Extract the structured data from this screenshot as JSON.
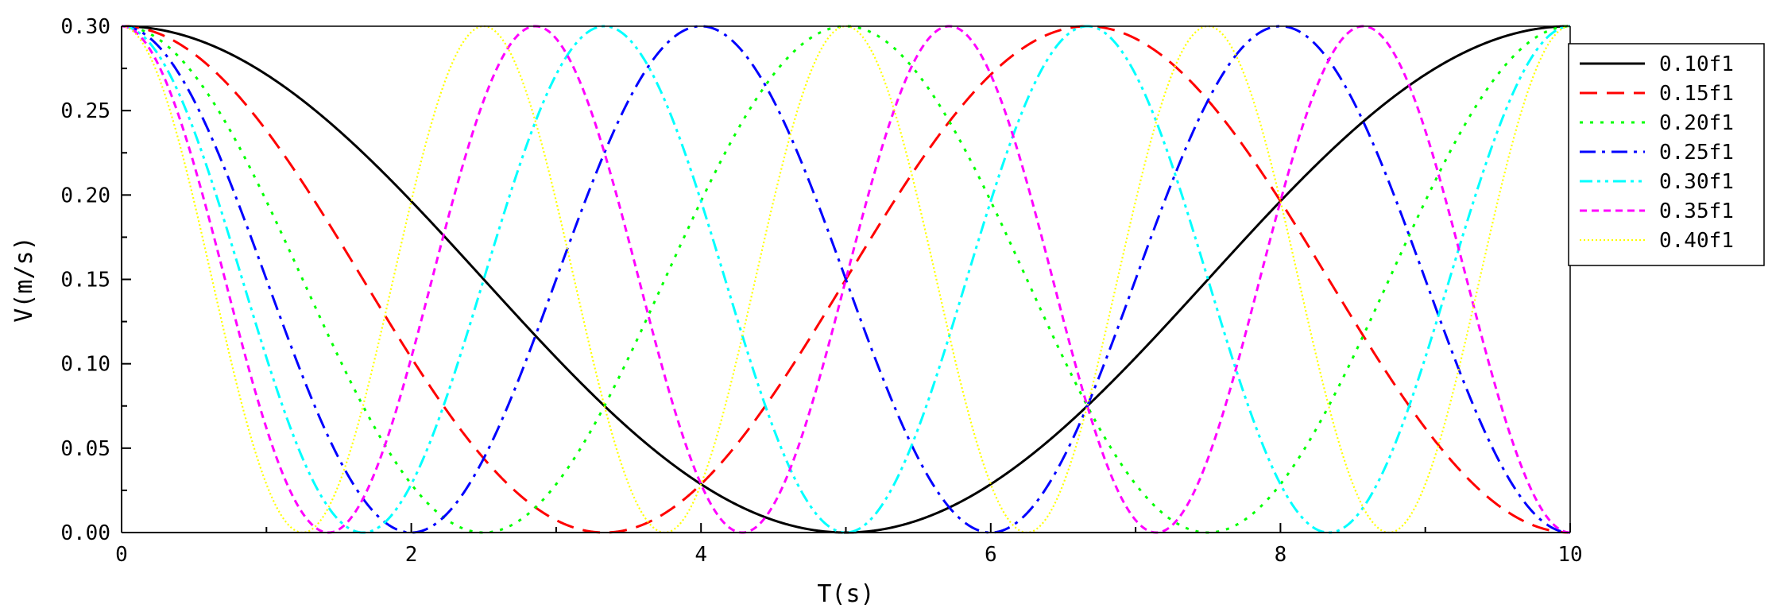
{
  "chart_data": {
    "type": "line",
    "xlabel": "T(s)",
    "ylabel": "V(m/s)",
    "xlim": [
      0,
      10
    ],
    "ylim": [
      0,
      0.3
    ],
    "xticks": [
      "0",
      "2",
      "4",
      "6",
      "8",
      "10"
    ],
    "yticks": [
      "0.00",
      "0.05",
      "0.10",
      "0.15",
      "0.20",
      "0.25",
      "0.30"
    ],
    "grid": false,
    "legend_position": "top-right",
    "series": [
      {
        "name": "0.10f1",
        "color": "#000000",
        "dash": "solid",
        "formula": "V = 0.15 + 0.15*cos(2*pi*0.10*T)",
        "x": [
          0,
          1,
          2,
          2.5,
          3,
          4,
          5,
          6,
          7,
          7.5,
          8,
          9,
          10
        ],
        "y": [
          0.3,
          0.271,
          0.196,
          0.15,
          0.104,
          0.029,
          0,
          0.029,
          0.104,
          0.15,
          0.196,
          0.271,
          0.3
        ]
      },
      {
        "name": "0.15f1",
        "color": "#ff0000",
        "dash": "dashed",
        "formula": "V = 0.15 + 0.15*cos(2*pi*0.15*T)",
        "x": [
          0,
          1,
          2,
          3.333,
          4,
          5,
          6,
          6.667,
          8,
          9,
          10
        ],
        "y": [
          0.3,
          0.238,
          0.104,
          0,
          0.029,
          0.15,
          0.271,
          0.3,
          0.196,
          0.062,
          0
        ]
      },
      {
        "name": "0.20f1",
        "color": "#00ff00",
        "dash": "dotted",
        "formula": "V = 0.15 + 0.15*cos(2*pi*0.20*T)",
        "x": [
          0,
          1,
          2,
          2.5,
          3,
          4,
          5,
          6,
          7,
          7.5,
          8,
          9,
          10
        ],
        "y": [
          0.3,
          0.196,
          0.029,
          0,
          0.029,
          0.196,
          0.3,
          0.196,
          0.029,
          0,
          0.029,
          0.196,
          0.3
        ]
      },
      {
        "name": "0.25f1",
        "color": "#0000ff",
        "dash": "dash-dot",
        "formula": "V = 0.15 + 0.15*cos(2*pi*0.25*T)",
        "x": [
          0,
          1,
          2,
          3,
          4,
          5,
          6,
          7,
          8,
          9,
          10
        ],
        "y": [
          0.3,
          0.15,
          0,
          0.15,
          0.3,
          0.15,
          0,
          0.15,
          0.3,
          0.15,
          0
        ]
      },
      {
        "name": "0.30f1",
        "color": "#00ffff",
        "dash": "dash-dot-dot",
        "formula": "V = 0.15 + 0.15*cos(2*pi*0.30*T)",
        "x": [
          0,
          1.667,
          3.333,
          5,
          6.667,
          8.333,
          10
        ],
        "y": [
          0.3,
          0,
          0.3,
          0,
          0.3,
          0,
          0.3
        ]
      },
      {
        "name": "0.35f1",
        "color": "#ff00ff",
        "dash": "short-dash",
        "formula": "V = 0.15 + 0.15*cos(2*pi*0.35*T)",
        "x": [
          0,
          1.429,
          2.857,
          4.286,
          5.714,
          7.143,
          8.571,
          10
        ],
        "y": [
          0.3,
          0,
          0.3,
          0,
          0.3,
          0,
          0.3,
          0
        ]
      },
      {
        "name": "0.40f1",
        "color": "#ffff00",
        "dash": "fine-dot",
        "formula": "V = 0.15 + 0.15*cos(2*pi*0.40*T)",
        "x": [
          0,
          1.25,
          2.5,
          3.75,
          5,
          6.25,
          7.5,
          8.75,
          10
        ],
        "y": [
          0.3,
          0,
          0.3,
          0,
          0.3,
          0,
          0.3,
          0,
          0.3
        ]
      }
    ]
  }
}
